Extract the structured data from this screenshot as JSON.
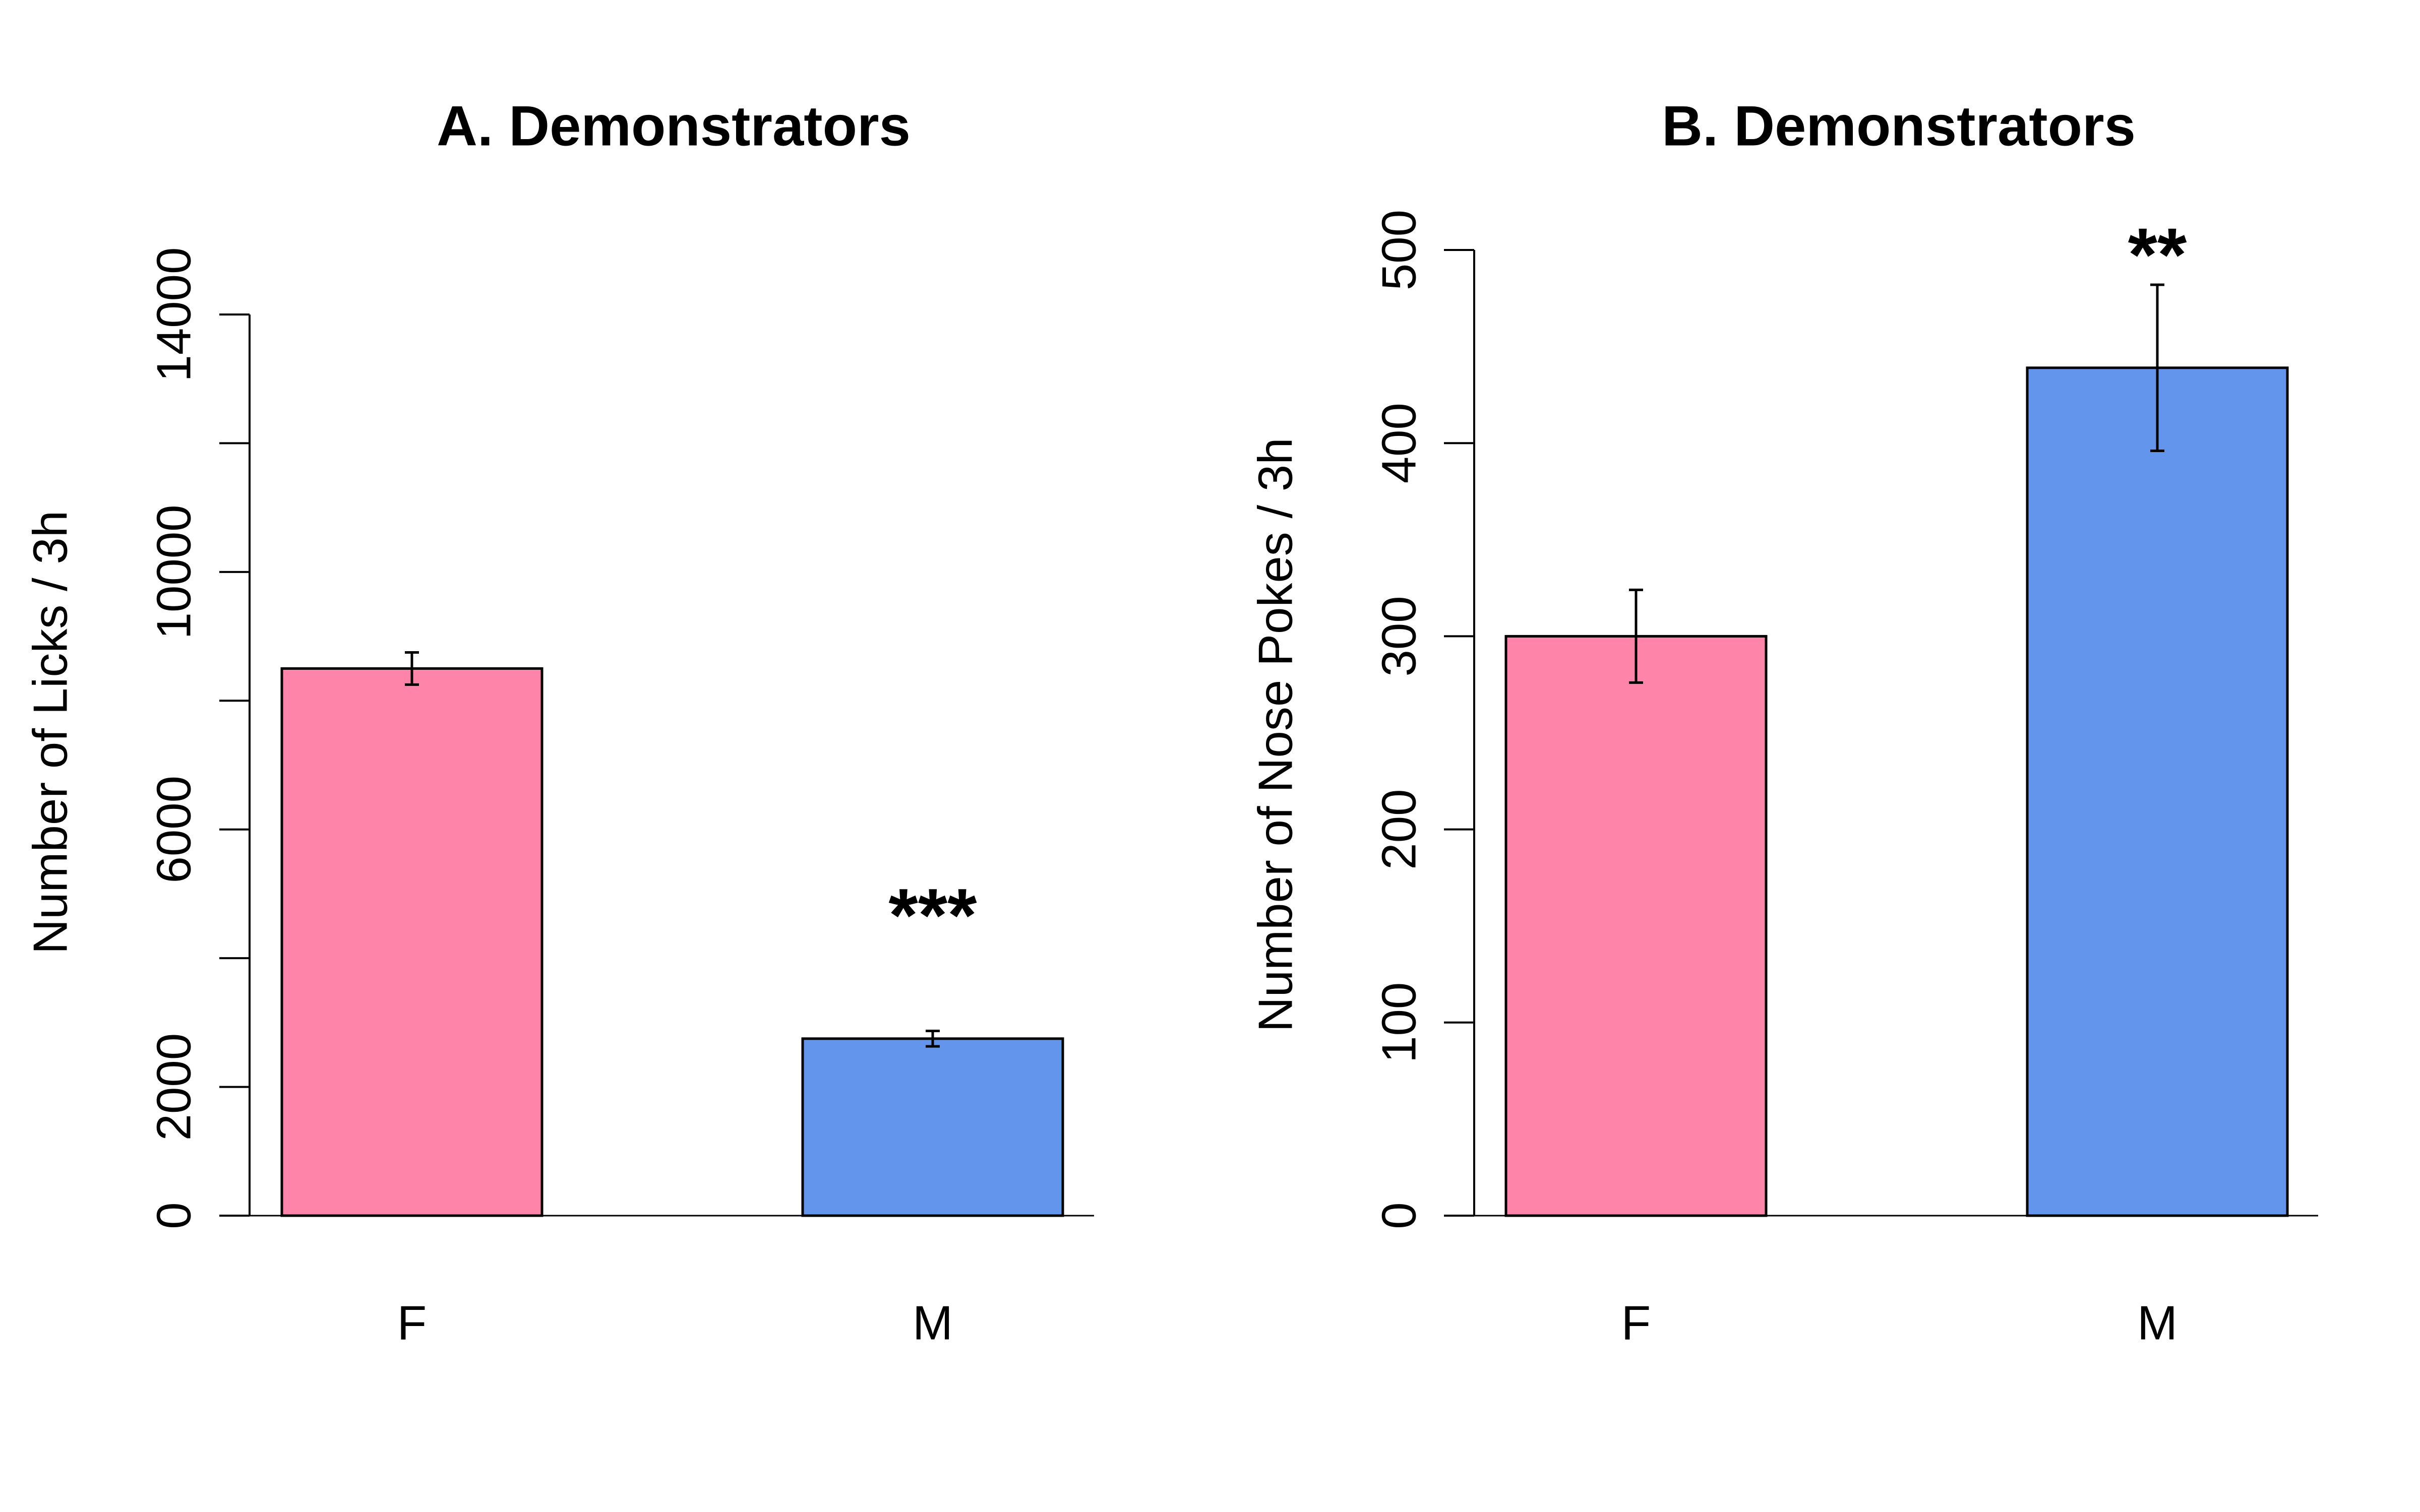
{
  "chart_data": [
    {
      "type": "bar",
      "title": "A. Demonstrators",
      "xlabel": "",
      "ylabel": "Number of Licks / 3h",
      "categories": [
        "F",
        "M"
      ],
      "values": [
        8500,
        2750
      ],
      "errors": [
        250,
        120
      ],
      "colors": [
        "#FF84A9",
        "#6495ED"
      ],
      "ylim": [
        0,
        14000
      ],
      "yticks": [
        0,
        2000,
        4000,
        6000,
        8000,
        10000,
        12000,
        14000
      ],
      "ytick_labels": [
        "0",
        "2000",
        "",
        "6000",
        "",
        "10000",
        "",
        "14000"
      ],
      "annotations": [
        {
          "category": "M",
          "text": "***"
        }
      ]
    },
    {
      "type": "bar",
      "title": "B. Demonstrators",
      "xlabel": "",
      "ylabel": "Number of Nose Pokes / 3h",
      "categories": [
        "F",
        "M"
      ],
      "values": [
        300,
        439
      ],
      "errors": [
        24,
        43
      ],
      "colors": [
        "#FF84A9",
        "#6495ED"
      ],
      "ylim": [
        0,
        500
      ],
      "yticks": [
        0,
        100,
        200,
        300,
        400,
        500
      ],
      "ytick_labels": [
        "0",
        "100",
        "200",
        "300",
        "400",
        "500"
      ],
      "annotations": [
        {
          "category": "M",
          "text": "**"
        }
      ]
    }
  ]
}
